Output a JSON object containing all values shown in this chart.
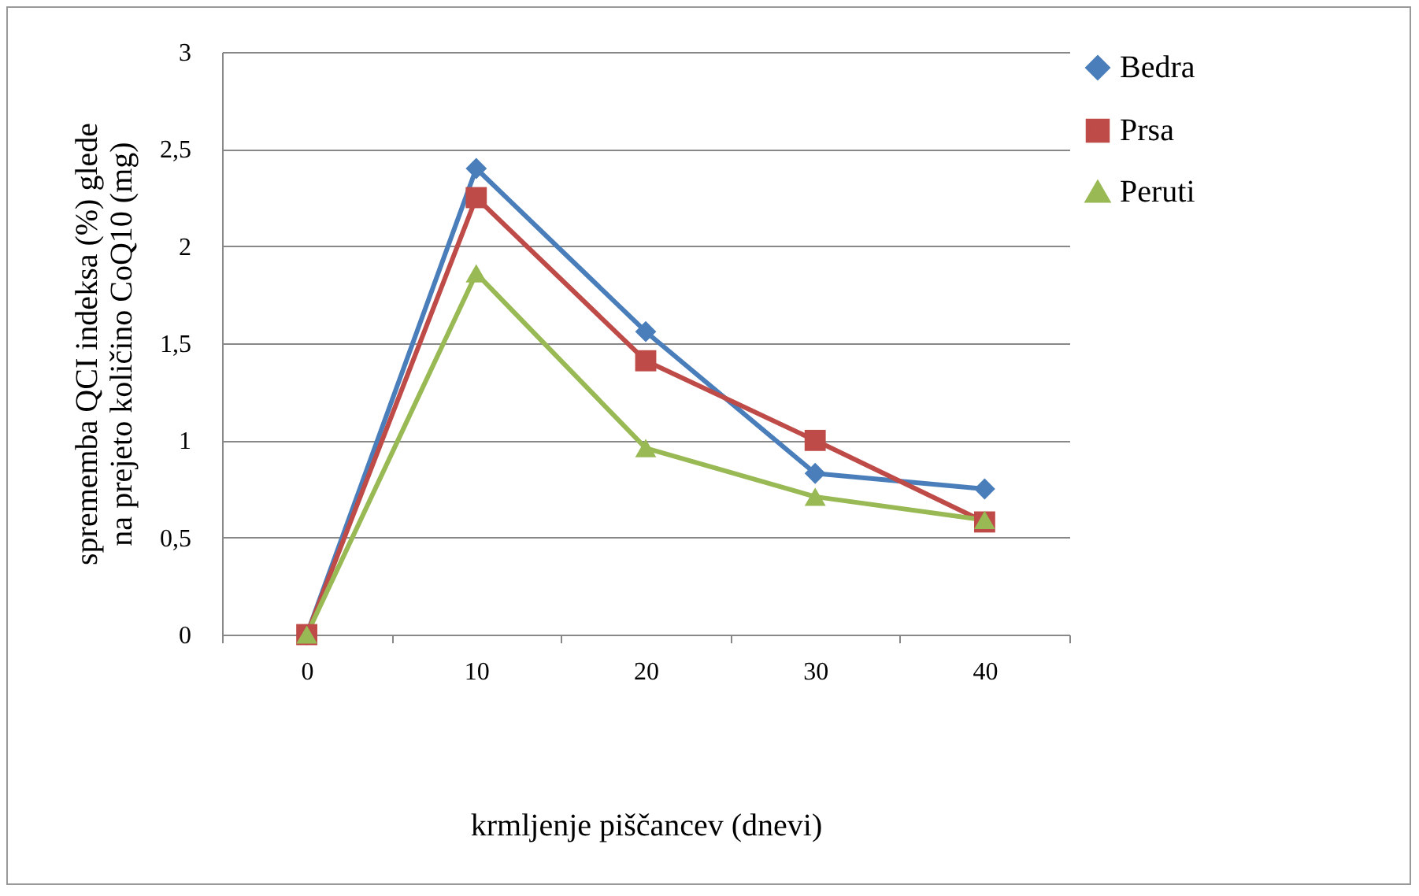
{
  "chart_data": {
    "type": "line",
    "xlabel": "krmljenje piščancev (dnevi)",
    "ylabel": "sprememba QCI indeksa (%) glede\nna prejeto količino CoQ10 (mg)",
    "categories": [
      "0",
      "10",
      "20",
      "30",
      "40"
    ],
    "series": [
      {
        "name": "Bedra",
        "color": "#4a7ebb",
        "marker": "diamond",
        "values": [
          0,
          2.4,
          1.56,
          0.83,
          0.75
        ]
      },
      {
        "name": "Prsa",
        "color": "#be4b48",
        "marker": "square",
        "values": [
          0,
          2.25,
          1.41,
          1.0,
          0.58
        ]
      },
      {
        "name": "Peruti",
        "color": "#98b954",
        "marker": "triangle",
        "values": [
          0,
          1.86,
          0.96,
          0.71,
          0.59
        ]
      }
    ],
    "ylim": [
      0,
      3
    ],
    "yticks": [
      0,
      {
        "value": 0.5,
        "label": "0,5"
      },
      1,
      {
        "value": 1.5,
        "label": "1,5"
      },
      2,
      {
        "value": 2.5,
        "label": "2,5"
      },
      3
    ],
    "grid": "y",
    "legend": "right",
    "line_style": "solid"
  }
}
